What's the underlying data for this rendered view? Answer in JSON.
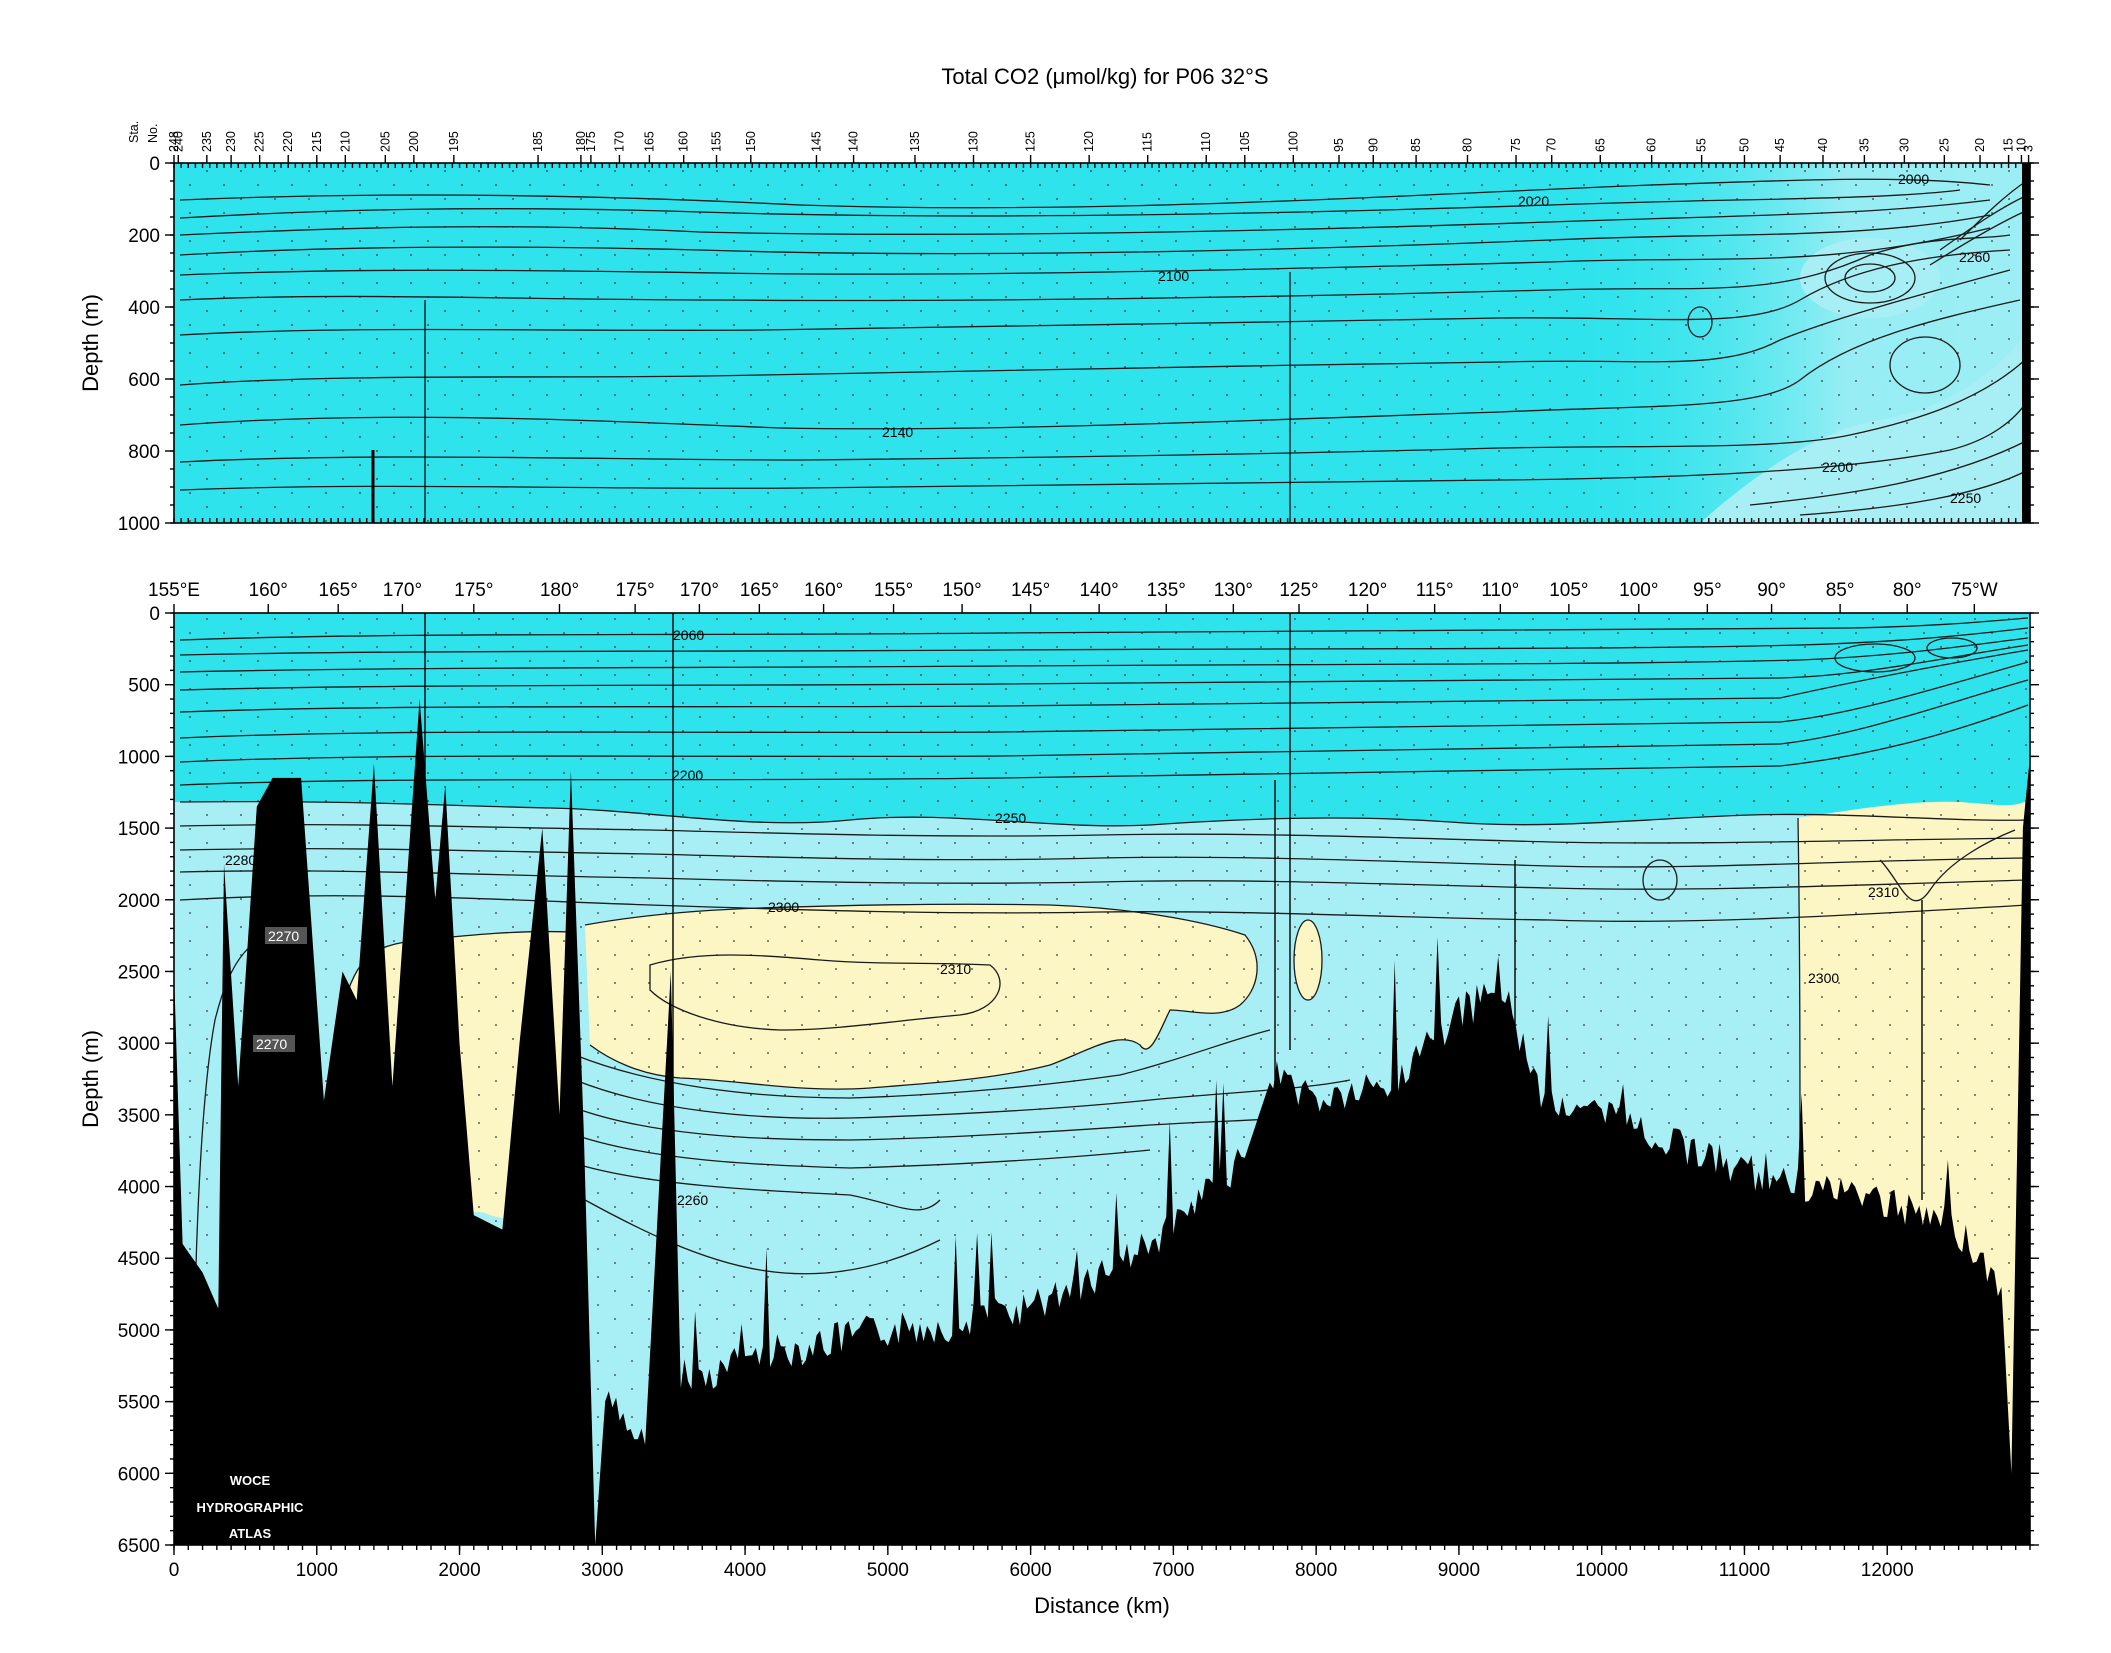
{
  "chart_data": [
    {
      "type": "heatmap",
      "title": "Total CO2 (μmol/kg) for P06 32°S",
      "ylabel": "Depth (m)",
      "ylim": [
        0,
        1000
      ],
      "y_ticks": [
        "0",
        "200",
        "400",
        "600",
        "800",
        "1000"
      ],
      "station_axis_label": [
        "Sta.",
        "No."
      ],
      "station_ticks": [
        "248",
        "240",
        "235",
        "230",
        "225",
        "220",
        "215",
        "210",
        "205",
        "200",
        "195",
        "185",
        "180",
        "175",
        "170",
        "165",
        "160",
        "155",
        "150",
        "145",
        "140",
        "135",
        "130",
        "125",
        "120",
        "115",
        "110",
        "105",
        "100",
        "95",
        "90",
        "85",
        "80",
        "75",
        "70",
        "65",
        "60",
        "55",
        "50",
        "45",
        "40",
        "35",
        "30",
        "25",
        "20",
        "15",
        "10",
        "3"
      ],
      "station_km": [
        0,
        30,
        230,
        400,
        600,
        800,
        1000,
        1200,
        1480,
        1680,
        1960,
        2550,
        2850,
        2920,
        3120,
        3330,
        3570,
        3800,
        4040,
        4500,
        4760,
        5190,
        5600,
        6000,
        6410,
        6820,
        7230,
        7500,
        7840,
        8160,
        8400,
        8700,
        9060,
        9400,
        9650,
        9990,
        10350,
        10700,
        11000,
        11250,
        11550,
        11840,
        12120,
        12400,
        12650,
        12850,
        12940,
        12990
      ],
      "contour_labels": [
        "2000",
        "2020",
        "2100",
        "2140",
        "2200",
        "2250",
        "2260"
      ],
      "colors": {
        "low": "#2ee3ec",
        "mid": "#a8eff5",
        "high": "#fbf6c3",
        "bottom": "#000000"
      }
    },
    {
      "type": "heatmap",
      "xlabel": "Distance (km)",
      "ylabel": "Depth (m)",
      "xlim": [
        0,
        13000
      ],
      "ylim": [
        0,
        6500
      ],
      "x_ticks": [
        "0",
        "1000",
        "2000",
        "3000",
        "4000",
        "5000",
        "6000",
        "7000",
        "8000",
        "9000",
        "10000",
        "11000",
        "12000"
      ],
      "y_ticks": [
        "0",
        "500",
        "1000",
        "1500",
        "2000",
        "2500",
        "3000",
        "3500",
        "4000",
        "4500",
        "5000",
        "5500",
        "6000",
        "6500"
      ],
      "longitude_ticks": [
        "155°E",
        "160°",
        "165°",
        "170°",
        "175°",
        "180°",
        "175°",
        "170°",
        "165°",
        "160°",
        "155°",
        "150°",
        "145°",
        "140°",
        "135°",
        "130°",
        "125°",
        "120°",
        "115°",
        "110°",
        "105°",
        "100°",
        "95°",
        "90°",
        "85°",
        "80°",
        "75°W"
      ],
      "longitude_km": [
        0,
        660,
        1150,
        1600,
        2100,
        2700,
        3230,
        3680,
        4100,
        4550,
        5040,
        5520,
        6000,
        6480,
        6950,
        7420,
        7880,
        8360,
        8830,
        9290,
        9770,
        10260,
        10740,
        11190,
        11670,
        12140,
        12610
      ],
      "contour_labels": [
        "2060",
        "2200",
        "2250",
        "2280",
        "2270",
        "2270",
        "2300",
        "2310",
        "2260",
        "2300",
        "2310"
      ],
      "bands": [
        {
          "range": "< 2250",
          "color": "#2ee3ec"
        },
        {
          "range": "2250 - 2300",
          "color": "#a8eff5"
        },
        {
          "range": "> 2300",
          "color": "#fbf6c3"
        }
      ],
      "bathymetry_depth_m": [
        [
          0,
          2500
        ],
        [
          60,
          4400
        ],
        [
          200,
          4600
        ],
        [
          310,
          4850
        ],
        [
          350,
          1750
        ],
        [
          450,
          3300
        ],
        [
          580,
          1350
        ],
        [
          690,
          1150
        ],
        [
          890,
          1150
        ],
        [
          1050,
          3400
        ],
        [
          1180,
          2500
        ],
        [
          1280,
          2700
        ],
        [
          1400,
          1050
        ],
        [
          1530,
          3300
        ],
        [
          1720,
          600
        ],
        [
          1830,
          2000
        ],
        [
          1900,
          1200
        ],
        [
          2000,
          3000
        ],
        [
          2100,
          4200
        ],
        [
          2300,
          4300
        ],
        [
          2420,
          3000
        ],
        [
          2580,
          1500
        ],
        [
          2700,
          3500
        ],
        [
          2780,
          1100
        ],
        [
          2870,
          3600
        ],
        [
          2950,
          6500
        ],
        [
          3020,
          5500
        ],
        [
          3300,
          5800
        ],
        [
          3480,
          2500
        ],
        [
          3550,
          5400
        ],
        [
          4000,
          5200
        ],
        [
          4500,
          5100
        ],
        [
          5000,
          5000
        ],
        [
          5500,
          4950
        ],
        [
          6000,
          4850
        ],
        [
          6500,
          4600
        ],
        [
          7000,
          4300
        ],
        [
          7500,
          3800
        ],
        [
          7700,
          3200
        ],
        [
          8000,
          3400
        ],
        [
          8500,
          3300
        ],
        [
          9000,
          2800
        ],
        [
          9300,
          2600
        ],
        [
          9600,
          3400
        ],
        [
          10000,
          3500
        ],
        [
          10500,
          3700
        ],
        [
          11000,
          3900
        ],
        [
          11500,
          4000
        ],
        [
          12000,
          4100
        ],
        [
          12500,
          4300
        ],
        [
          12800,
          4700
        ],
        [
          12870,
          6000
        ],
        [
          12950,
          1500
        ],
        [
          13000,
          1000
        ]
      ],
      "colors": {
        "bottom": "#000000"
      },
      "watermark": [
        "WOCE",
        "HYDROGRAPHIC",
        "ATLAS"
      ]
    }
  ]
}
